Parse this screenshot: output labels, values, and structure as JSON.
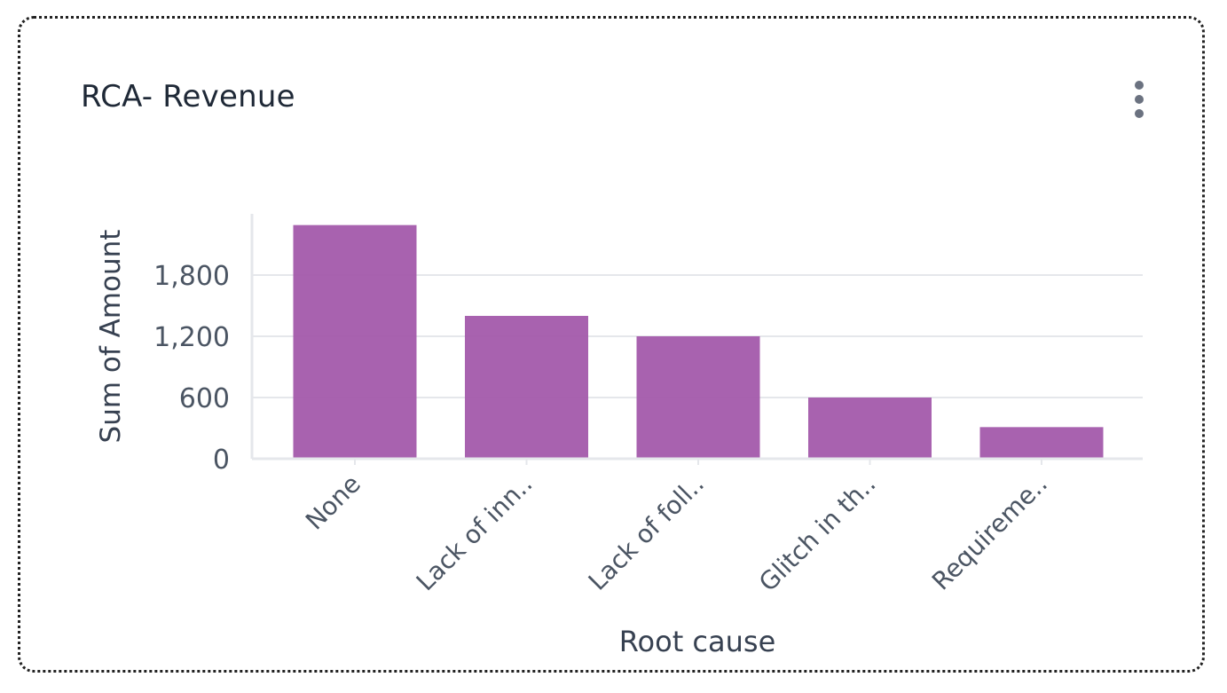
{
  "card": {
    "title": "RCA- Revenue",
    "menu_icon": "more-vertical-icon"
  },
  "colors": {
    "bar": "#a35aab",
    "grid": "#e5e7eb",
    "axis": "#e5e7eb",
    "tick_text": "#4b5563",
    "label_text": "#374151"
  },
  "chart_data": {
    "type": "bar",
    "categories": [
      "None",
      "Lack of inn..",
      "Lack of foll..",
      "Glitch in th..",
      "Requireme.."
    ],
    "values": [
      2290,
      1400,
      1200,
      600,
      310
    ],
    "xlabel": "Root cause",
    "ylabel": "Sum of Amount",
    "yticks": [
      0,
      600,
      1200,
      1800
    ],
    "ytick_labels": [
      "0",
      "600",
      "1,200",
      "1,800"
    ],
    "ylim": [
      0,
      2400
    ],
    "grid": true,
    "legend": "none"
  }
}
